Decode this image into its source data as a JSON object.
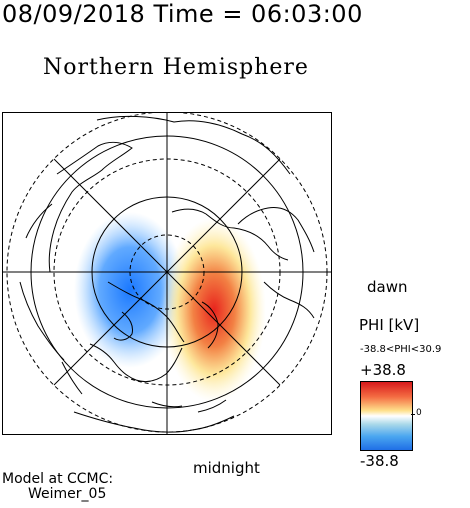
{
  "header": {
    "title": "08/09/2018 Time = 06:03:00"
  },
  "map": {
    "hemisphere_title": "Northern Hemisphere",
    "label_dawn": "dawn",
    "label_midnight": "midnight"
  },
  "colorbar": {
    "title": "PHI [kV]",
    "range_text": "-38.8<PHI<30.9",
    "max_label": "+38.8",
    "zero_label": "0",
    "min_label": "-38.8",
    "min_kv": -38.8,
    "max_kv": 38.8,
    "colors": {
      "high": "#d7191c",
      "mid": "#ffffff",
      "low": "#1f6fe6"
    }
  },
  "credit": {
    "line1": "Model at CCMC:",
    "line2": "Weimer_05"
  }
}
